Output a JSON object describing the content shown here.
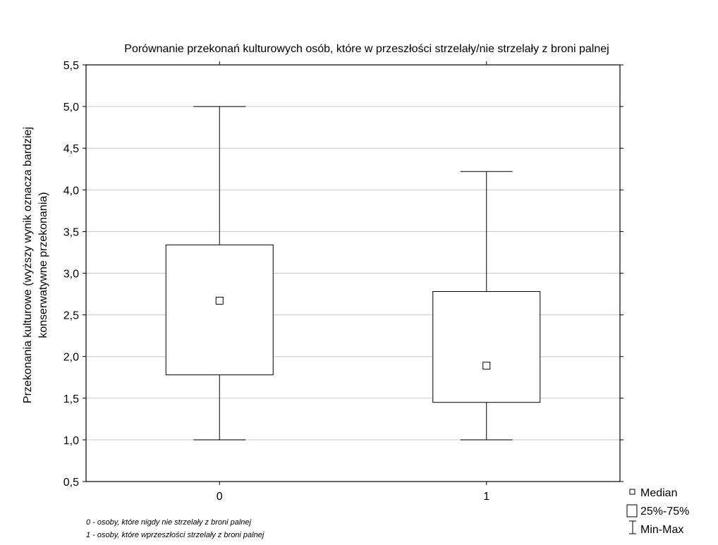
{
  "chart_data": {
    "type": "boxplot",
    "title": "Porównanie przekonań kulturowych osób, które w przeszłości strzelały/nie strzelały z broni palnej",
    "ylabel_line1": "Przekonania kulturowe (wyższy wynik oznacza bardziej",
    "ylabel_line2": "konserwatywne przekonania)",
    "xlabel": "",
    "ylim": [
      0.5,
      5.5
    ],
    "yticks": [
      "0,5",
      "1,0",
      "1,5",
      "2,0",
      "2,5",
      "3,0",
      "3,5",
      "4,0",
      "4,5",
      "5,0",
      "5,5"
    ],
    "ytick_values": [
      0.5,
      1.0,
      1.5,
      2.0,
      2.5,
      3.0,
      3.5,
      4.0,
      4.5,
      5.0,
      5.5
    ],
    "grid": "horizontal",
    "categories": [
      "0",
      "1"
    ],
    "boxes": [
      {
        "category": "0",
        "min": 1.0,
        "q1": 1.78,
        "median": 2.67,
        "q3": 3.34,
        "max": 5.0
      },
      {
        "category": "1",
        "min": 1.0,
        "q1": 1.45,
        "median": 1.89,
        "q3": 2.78,
        "max": 4.22
      }
    ],
    "legend_placement": "bottom-right",
    "legend": [
      "Median",
      "25%-75%",
      "Min-Max"
    ],
    "notes": [
      "0 - osoby, które nigdy nie strzelały z broni palnej",
      "1 - osoby, które wprzeszłości strzelały z broni palnej"
    ]
  }
}
